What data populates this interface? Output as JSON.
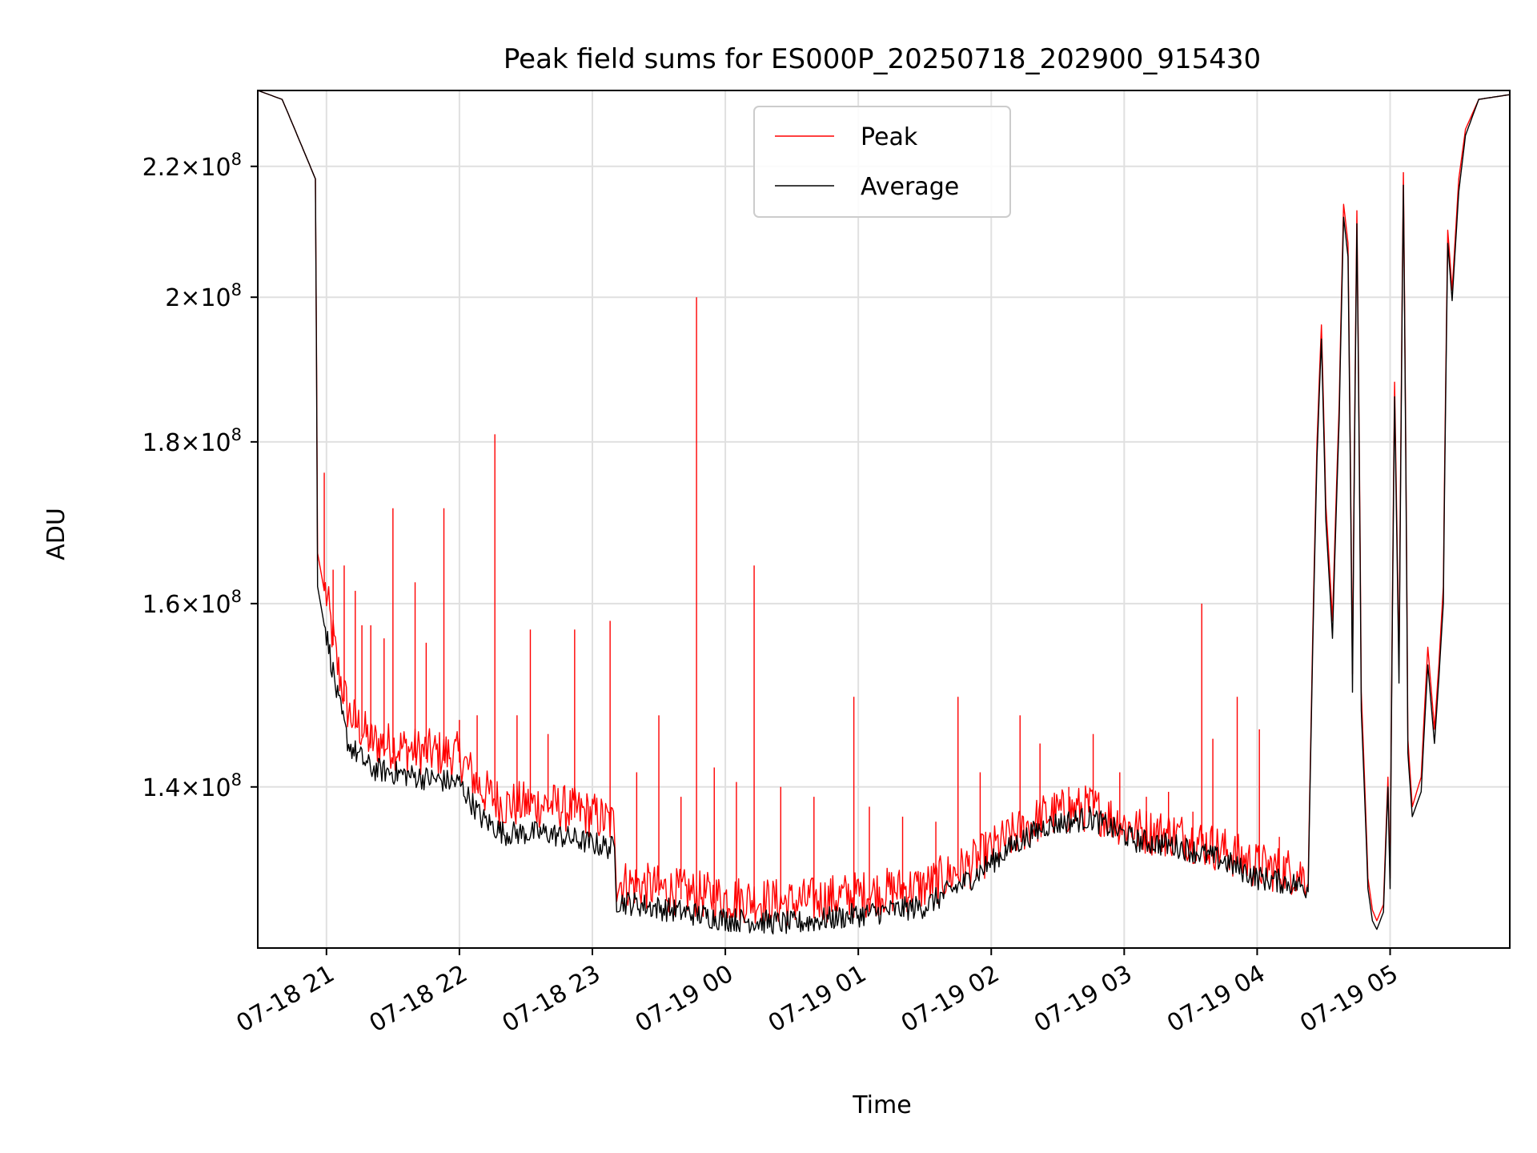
{
  "colors": {
    "peak": "#ff0000",
    "average": "#000000",
    "grid": "#e0e0e0",
    "axis": "#000000"
  },
  "chart_data": {
    "type": "line",
    "title": "Peak field sums for ES000P_20250718_202900_915430",
    "xlabel": "Time",
    "ylabel": "ADU",
    "yscale": "log",
    "grid": true,
    "legend_position": "upper center",
    "xlim": [
      "2025-07-18 20:29",
      "2025-07-19 05:54"
    ],
    "ylim": [
      124500000,
      232500000
    ],
    "xticks": [
      {
        "label": "07-18 21",
        "time": "2025-07-18 21:00"
      },
      {
        "label": "07-18 22",
        "time": "2025-07-18 22:00"
      },
      {
        "label": "07-18 23",
        "time": "2025-07-18 23:00"
      },
      {
        "label": "07-19 00",
        "time": "2025-07-19 00:00"
      },
      {
        "label": "07-19 01",
        "time": "2025-07-19 01:00"
      },
      {
        "label": "07-19 02",
        "time": "2025-07-19 02:00"
      },
      {
        "label": "07-19 03",
        "time": "2025-07-19 03:00"
      },
      {
        "label": "07-19 04",
        "time": "2025-07-19 04:00"
      },
      {
        "label": "07-19 05",
        "time": "2025-07-19 05:00"
      }
    ],
    "yticks": [
      {
        "mant": "1.4",
        "exp": "8",
        "value": 140000000
      },
      {
        "mant": "1.6",
        "exp": "8",
        "value": 160000000
      },
      {
        "mant": "1.8",
        "exp": "8",
        "value": 180000000
      },
      {
        "mant": "2",
        "exp": "8",
        "value": 200000000
      },
      {
        "mant": "2.2",
        "exp": "8",
        "value": 220000000
      }
    ],
    "series": [
      {
        "name": "Peak",
        "color": "#ff0000",
        "points": [
          [
            "2025-07-18 20:29",
            232500000
          ],
          [
            "2025-07-18 20:40",
            231000000
          ],
          [
            "2025-07-18 20:48",
            224000000
          ],
          [
            "2025-07-18 20:55",
            218000000
          ],
          [
            "2025-07-18 20:56",
            166000000
          ],
          [
            "2025-07-18 21:00",
            160000000
          ],
          [
            "2025-07-18 21:05",
            152000000
          ],
          [
            "2025-07-18 21:10",
            147000000
          ],
          [
            "2025-07-18 21:20",
            144000000
          ],
          [
            "2025-07-18 21:40",
            143000000
          ],
          [
            "2025-07-18 22:00",
            142500000
          ],
          [
            "2025-07-18 22:10",
            139000000
          ],
          [
            "2025-07-18 22:20",
            137500000
          ],
          [
            "2025-07-18 22:40",
            137500000
          ],
          [
            "2025-07-18 23:00",
            136500000
          ],
          [
            "2025-07-18 23:10",
            135500000
          ],
          [
            "2025-07-18 23:11",
            130000000
          ],
          [
            "2025-07-18 23:40",
            129000000
          ],
          [
            "2025-07-19 00:00",
            128500000
          ],
          [
            "2025-07-19 00:30",
            128000000
          ],
          [
            "2025-07-19 01:00",
            128800000
          ],
          [
            "2025-07-19 01:30",
            129500000
          ],
          [
            "2025-07-19 01:50",
            131500000
          ],
          [
            "2025-07-19 02:10",
            134500000
          ],
          [
            "2025-07-19 02:25",
            136500000
          ],
          [
            "2025-07-19 02:45",
            137200000
          ],
          [
            "2025-07-19 03:05",
            135000000
          ],
          [
            "2025-07-19 03:25",
            134500000
          ],
          [
            "2025-07-19 03:45",
            133000000
          ],
          [
            "2025-07-19 04:00",
            131500000
          ],
          [
            "2025-07-19 04:15",
            131000000
          ],
          [
            "2025-07-19 04:23",
            130500000
          ],
          [
            "2025-07-19 04:27",
            180000000
          ],
          [
            "2025-07-19 04:29",
            196000000
          ],
          [
            "2025-07-19 04:31",
            172000000
          ],
          [
            "2025-07-19 04:34",
            158000000
          ],
          [
            "2025-07-19 04:37",
            185000000
          ],
          [
            "2025-07-19 04:39",
            214000000
          ],
          [
            "2025-07-19 04:41",
            208000000
          ],
          [
            "2025-07-19 04:43",
            152000000
          ],
          [
            "2025-07-19 04:45",
            213000000
          ],
          [
            "2025-07-19 04:47",
            150000000
          ],
          [
            "2025-07-19 04:50",
            131000000
          ],
          [
            "2025-07-19 04:52",
            128000000
          ],
          [
            "2025-07-19 04:54",
            127000000
          ],
          [
            "2025-07-19 04:57",
            128500000
          ],
          [
            "2025-07-19 04:59",
            141000000
          ],
          [
            "2025-07-19 05:00",
            131000000
          ],
          [
            "2025-07-19 05:02",
            188000000
          ],
          [
            "2025-07-19 05:04",
            153000000
          ],
          [
            "2025-07-19 05:06",
            219000000
          ],
          [
            "2025-07-19 05:08",
            145000000
          ],
          [
            "2025-07-19 05:10",
            138000000
          ],
          [
            "2025-07-19 05:14",
            141000000
          ],
          [
            "2025-07-19 05:17",
            155000000
          ],
          [
            "2025-07-19 05:20",
            146000000
          ],
          [
            "2025-07-19 05:22",
            153000000
          ],
          [
            "2025-07-19 05:24",
            162000000
          ],
          [
            "2025-07-19 05:26",
            210000000
          ],
          [
            "2025-07-19 05:28",
            201000000
          ],
          [
            "2025-07-19 05:31",
            218000000
          ],
          [
            "2025-07-19 05:34",
            226000000
          ],
          [
            "2025-07-19 05:40",
            231000000
          ],
          [
            "2025-07-19 05:54",
            231800000
          ]
        ]
      },
      {
        "name": "Average",
        "color": "#000000",
        "points": [
          [
            "2025-07-18 20:29",
            232500000
          ],
          [
            "2025-07-18 20:40",
            231000000
          ],
          [
            "2025-07-18 20:48",
            224000000
          ],
          [
            "2025-07-18 20:55",
            218000000
          ],
          [
            "2025-07-18 20:56",
            162000000
          ],
          [
            "2025-07-18 21:00",
            156000000
          ],
          [
            "2025-07-18 21:05",
            149000000
          ],
          [
            "2025-07-18 21:10",
            144000000
          ],
          [
            "2025-07-18 21:20",
            141500000
          ],
          [
            "2025-07-18 21:40",
            140700000
          ],
          [
            "2025-07-18 22:00",
            140000000
          ],
          [
            "2025-07-18 22:10",
            136500000
          ],
          [
            "2025-07-18 22:20",
            135000000
          ],
          [
            "2025-07-18 22:40",
            135000000
          ],
          [
            "2025-07-18 23:00",
            134000000
          ],
          [
            "2025-07-18 23:10",
            133500000
          ],
          [
            "2025-07-18 23:11",
            128500000
          ],
          [
            "2025-07-18 23:40",
            127500000
          ],
          [
            "2025-07-19 00:00",
            126800000
          ],
          [
            "2025-07-19 00:30",
            126400000
          ],
          [
            "2025-07-19 01:00",
            127200000
          ],
          [
            "2025-07-19 01:30",
            128000000
          ],
          [
            "2025-07-19 01:50",
            130500000
          ],
          [
            "2025-07-19 02:10",
            133800000
          ],
          [
            "2025-07-19 02:25",
            135800000
          ],
          [
            "2025-07-19 02:45",
            136500000
          ],
          [
            "2025-07-19 03:05",
            134300000
          ],
          [
            "2025-07-19 03:25",
            133700000
          ],
          [
            "2025-07-19 03:45",
            132300000
          ],
          [
            "2025-07-19 04:00",
            130700000
          ],
          [
            "2025-07-19 04:15",
            130200000
          ],
          [
            "2025-07-19 04:23",
            129700000
          ],
          [
            "2025-07-19 04:27",
            178000000
          ],
          [
            "2025-07-19 04:29",
            194000000
          ],
          [
            "2025-07-19 04:31",
            170000000
          ],
          [
            "2025-07-19 04:34",
            156000000
          ],
          [
            "2025-07-19 04:37",
            183000000
          ],
          [
            "2025-07-19 04:39",
            212000000
          ],
          [
            "2025-07-19 04:41",
            206000000
          ],
          [
            "2025-07-19 04:43",
            150000000
          ],
          [
            "2025-07-19 04:45",
            211000000
          ],
          [
            "2025-07-19 04:47",
            148000000
          ],
          [
            "2025-07-19 04:50",
            130000000
          ],
          [
            "2025-07-19 04:52",
            127000000
          ],
          [
            "2025-07-19 04:54",
            126200000
          ],
          [
            "2025-07-19 04:57",
            127800000
          ],
          [
            "2025-07-19 04:59",
            140000000
          ],
          [
            "2025-07-19 05:00",
            130000000
          ],
          [
            "2025-07-19 05:02",
            186000000
          ],
          [
            "2025-07-19 05:04",
            151000000
          ],
          [
            "2025-07-19 05:06",
            217000000
          ],
          [
            "2025-07-19 05:08",
            143500000
          ],
          [
            "2025-07-19 05:10",
            137000000
          ],
          [
            "2025-07-19 05:14",
            139500000
          ],
          [
            "2025-07-19 05:17",
            153000000
          ],
          [
            "2025-07-19 05:20",
            144500000
          ],
          [
            "2025-07-19 05:22",
            151500000
          ],
          [
            "2025-07-19 05:24",
            160000000
          ],
          [
            "2025-07-19 05:26",
            208000000
          ],
          [
            "2025-07-19 05:28",
            199500000
          ],
          [
            "2025-07-19 05:31",
            216000000
          ],
          [
            "2025-07-19 05:34",
            225000000
          ],
          [
            "2025-07-19 05:40",
            231000000
          ],
          [
            "2025-07-19 05:54",
            231800000
          ]
        ]
      }
    ],
    "peak_spikes": [
      [
        "2025-07-18 20:59",
        176000000
      ],
      [
        "2025-07-18 21:03",
        164000000
      ],
      [
        "2025-07-18 21:08",
        164500000
      ],
      [
        "2025-07-18 21:13",
        161500000
      ],
      [
        "2025-07-18 21:16",
        157500000
      ],
      [
        "2025-07-18 21:20",
        157500000
      ],
      [
        "2025-07-18 21:26",
        156000000
      ],
      [
        "2025-07-18 21:30",
        171500000
      ],
      [
        "2025-07-18 21:40",
        162500000
      ],
      [
        "2025-07-18 21:45",
        155500000
      ],
      [
        "2025-07-18 21:53",
        171500000
      ],
      [
        "2025-07-18 22:00",
        147000000
      ],
      [
        "2025-07-18 22:08",
        147500000
      ],
      [
        "2025-07-18 22:16",
        181000000
      ],
      [
        "2025-07-18 22:26",
        147500000
      ],
      [
        "2025-07-18 22:32",
        157000000
      ],
      [
        "2025-07-18 22:40",
        145500000
      ],
      [
        "2025-07-18 22:52",
        157000000
      ],
      [
        "2025-07-18 23:08",
        158000000
      ],
      [
        "2025-07-18 23:20",
        141500000
      ],
      [
        "2025-07-18 23:30",
        147500000
      ],
      [
        "2025-07-18 23:40",
        139000000
      ],
      [
        "2025-07-18 23:47",
        200000000
      ],
      [
        "2025-07-18 23:55",
        142000000
      ],
      [
        "2025-07-19 00:05",
        140500000
      ],
      [
        "2025-07-19 00:13",
        164500000
      ],
      [
        "2025-07-19 00:25",
        140000000
      ],
      [
        "2025-07-19 00:40",
        139000000
      ],
      [
        "2025-07-19 00:58",
        149500000
      ],
      [
        "2025-07-19 01:05",
        138000000
      ],
      [
        "2025-07-19 01:20",
        137000000
      ],
      [
        "2025-07-19 01:35",
        136500000
      ],
      [
        "2025-07-19 01:45",
        149500000
      ],
      [
        "2025-07-19 01:55",
        141500000
      ],
      [
        "2025-07-19 02:13",
        147500000
      ],
      [
        "2025-07-19 02:22",
        144500000
      ],
      [
        "2025-07-19 02:35",
        140000000
      ],
      [
        "2025-07-19 02:46",
        145500000
      ],
      [
        "2025-07-19 02:58",
        141500000
      ],
      [
        "2025-07-19 03:10",
        139000000
      ],
      [
        "2025-07-19 03:20",
        139500000
      ],
      [
        "2025-07-19 03:31",
        137500000
      ],
      [
        "2025-07-19 03:35",
        160000000
      ],
      [
        "2025-07-19 03:40",
        145000000
      ],
      [
        "2025-07-19 03:51",
        149500000
      ],
      [
        "2025-07-19 04:01",
        146000000
      ],
      [
        "2025-07-19 04:10",
        135000000
      ]
    ],
    "legend": [
      {
        "label": "Peak",
        "color": "#ff0000"
      },
      {
        "label": "Average",
        "color": "#000000"
      }
    ]
  }
}
